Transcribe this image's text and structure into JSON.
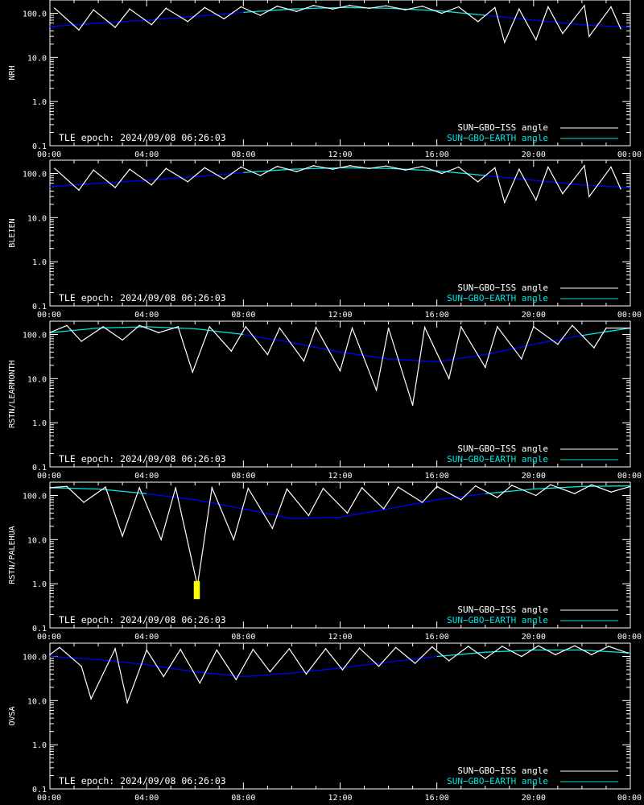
{
  "axes": {
    "y_ticks": [
      "0.1",
      "1.0",
      "10.0",
      "100.0"
    ],
    "x_ticks": [
      "00:00",
      "04:00",
      "08:00",
      "12:00",
      "16:00",
      "20:00",
      "00:00"
    ]
  },
  "legend": {
    "iss_label": "SUN−GBO−ISS angle",
    "earth_label": "SUN−GBO−EARTH angle"
  },
  "epoch_label": "TLE epoch: 2024/09/08 06:26:03",
  "colors": {
    "background": "#000000",
    "axes": "#ffffff",
    "iss": "#ffffff",
    "earth_low": "#0000ff",
    "earth_high": "#00e5e5",
    "highlight": "#ffff00"
  },
  "chart_data": [
    {
      "type": "line",
      "station": "NRH",
      "ylabel": "NRH",
      "xlim_hours": [
        0,
        24
      ],
      "ylim": [
        0.1,
        200
      ],
      "yscale": "log",
      "series": [
        {
          "name": "SUN−GBO−ISS angle",
          "x": [
            0.2,
            1.2,
            1.8,
            2.7,
            3.3,
            4.2,
            4.8,
            5.7,
            6.4,
            7.2,
            7.9,
            8.7,
            9.4,
            10.2,
            10.9,
            11.7,
            12.4,
            13.2,
            13.9,
            14.7,
            15.4,
            16.2,
            16.9,
            17.7,
            18.4,
            18.8,
            19.4,
            20.1,
            20.6,
            21.2,
            22.1,
            22.3,
            23.2,
            23.6
          ],
          "y": [
            130,
            42,
            120,
            48,
            125,
            55,
            130,
            65,
            135,
            75,
            140,
            90,
            145,
            110,
            150,
            125,
            150,
            130,
            148,
            120,
            145,
            100,
            140,
            65,
            135,
            22,
            125,
            25,
            140,
            35,
            150,
            30,
            140,
            45
          ]
        },
        {
          "name": "SUN−GBO−EARTH angle",
          "x": [
            0,
            2,
            4,
            6,
            8,
            10,
            12,
            14,
            16,
            18,
            20,
            22,
            24
          ],
          "y": [
            50,
            60,
            70,
            85,
            105,
            125,
            135,
            130,
            115,
            90,
            70,
            55,
            48
          ]
        }
      ]
    },
    {
      "type": "line",
      "station": "BLEIEN",
      "ylabel": "BLEIEN",
      "xlim_hours": [
        0,
        24
      ],
      "ylim": [
        0.1,
        200
      ],
      "yscale": "log",
      "series": [
        {
          "name": "SUN−GBO−ISS angle",
          "x": [
            0.2,
            1.2,
            1.8,
            2.7,
            3.3,
            4.2,
            4.8,
            5.7,
            6.4,
            7.2,
            7.9,
            8.7,
            9.4,
            10.2,
            10.9,
            11.7,
            12.4,
            13.2,
            13.9,
            14.7,
            15.4,
            16.2,
            16.9,
            17.7,
            18.4,
            18.8,
            19.4,
            20.1,
            20.6,
            21.2,
            22.1,
            22.3,
            23.2,
            23.6
          ],
          "y": [
            130,
            42,
            120,
            48,
            125,
            55,
            130,
            65,
            135,
            75,
            140,
            90,
            145,
            110,
            150,
            125,
            150,
            130,
            148,
            120,
            145,
            100,
            140,
            65,
            135,
            22,
            125,
            25,
            140,
            35,
            150,
            30,
            140,
            45
          ]
        },
        {
          "name": "SUN−GBO−EARTH angle",
          "x": [
            0,
            2,
            4,
            6,
            8,
            10,
            12,
            14,
            16,
            18,
            20,
            22,
            24
          ],
          "y": [
            50,
            60,
            70,
            85,
            105,
            125,
            135,
            130,
            115,
            90,
            70,
            55,
            48
          ]
        }
      ]
    },
    {
      "type": "line",
      "station": "RSTN/LEARMONTH",
      "ylabel": "RSTN/LEARMONTH",
      "xlim_hours": [
        0,
        24
      ],
      "ylim": [
        0.1,
        200
      ],
      "yscale": "log",
      "series": [
        {
          "name": "SUN−GBO−ISS angle",
          "x": [
            0,
            0.7,
            1.3,
            2.2,
            3.0,
            3.7,
            4.5,
            5.3,
            5.9,
            6.6,
            7.5,
            8.1,
            9.0,
            9.5,
            10.5,
            11.0,
            12.0,
            12.5,
            13.5,
            14.0,
            15.0,
            15.5,
            16.5,
            17.0,
            18.0,
            18.5,
            19.5,
            20.0,
            21.0,
            21.6,
            22.5,
            23.0,
            24.0
          ],
          "y": [
            110,
            160,
            70,
            150,
            75,
            160,
            110,
            150,
            14,
            150,
            42,
            150,
            35,
            140,
            25,
            145,
            15,
            140,
            5.5,
            140,
            2.5,
            145,
            10,
            150,
            18,
            150,
            28,
            150,
            60,
            160,
            50,
            140,
            140
          ]
        },
        {
          "name": "SUN−GBO−EARTH angle",
          "x": [
            0,
            2,
            4,
            6,
            8,
            10,
            12,
            14,
            16,
            18,
            20,
            22,
            24
          ],
          "y": [
            110,
            140,
            150,
            135,
            100,
            65,
            40,
            28,
            24,
            35,
            60,
            95,
            140
          ]
        }
      ]
    },
    {
      "type": "line",
      "station": "RSTN/PALEHUA",
      "ylabel": "RSTN/PALEHUA",
      "xlim_hours": [
        0,
        24
      ],
      "ylim": [
        0.1,
        200
      ],
      "yscale": "log",
      "highlight": {
        "x_start": 5.95,
        "x_end": 6.2,
        "y_low": 0.45,
        "y_high": 1.15
      },
      "series": [
        {
          "name": "SUN−GBO−ISS angle",
          "x": [
            0,
            0.7,
            1.4,
            2.3,
            3.0,
            3.7,
            4.6,
            5.2,
            6.1,
            6.7,
            7.6,
            8.2,
            9.2,
            9.8,
            10.7,
            11.3,
            12.3,
            12.9,
            13.8,
            14.4,
            15.4,
            16.0,
            17.0,
            17.6,
            18.5,
            19.1,
            20.1,
            20.7,
            21.7,
            22.4,
            23.2,
            24.0
          ],
          "y": [
            150,
            160,
            70,
            155,
            12,
            150,
            10,
            150,
            0.9,
            150,
            10,
            145,
            18,
            140,
            35,
            145,
            40,
            150,
            50,
            155,
            70,
            160,
            80,
            165,
            90,
            170,
            100,
            175,
            110,
            175,
            120,
            160
          ]
        },
        {
          "name": "SUN−GBO−EARTH angle",
          "x": [
            0,
            2,
            4,
            6,
            8,
            10,
            12,
            14,
            16,
            18,
            20,
            22,
            24
          ],
          "y": [
            150,
            140,
            110,
            80,
            50,
            30,
            32,
            50,
            80,
            110,
            140,
            160,
            165
          ]
        }
      ]
    },
    {
      "type": "line",
      "station": "OVSA",
      "ylabel": "OVSA",
      "xlim_hours": [
        0,
        24
      ],
      "ylim": [
        0.1,
        200
      ],
      "yscale": "log",
      "series": [
        {
          "name": "SUN−GBO−ISS angle",
          "x": [
            0,
            0.4,
            1.3,
            1.7,
            2.7,
            3.2,
            4.0,
            4.7,
            5.4,
            6.2,
            6.9,
            7.7,
            8.4,
            9.1,
            9.9,
            10.6,
            11.4,
            12.1,
            12.8,
            13.6,
            14.3,
            15.1,
            15.8,
            16.5,
            17.3,
            18.0,
            18.7,
            19.5,
            20.2,
            20.9,
            21.7,
            22.4,
            23.1,
            23.9
          ],
          "y": [
            110,
            160,
            60,
            11,
            150,
            9,
            140,
            35,
            145,
            25,
            140,
            30,
            145,
            45,
            150,
            40,
            150,
            50,
            155,
            60,
            160,
            70,
            165,
            80,
            170,
            90,
            170,
            100,
            175,
            110,
            175,
            110,
            170,
            120
          ]
        },
        {
          "name": "SUN−GBO−EARTH angle",
          "x": [
            0,
            2,
            4,
            6,
            8,
            10,
            12,
            14,
            16,
            18,
            20,
            22,
            24
          ],
          "y": [
            100,
            85,
            65,
            45,
            35,
            42,
            55,
            75,
            100,
            125,
            140,
            140,
            120
          ]
        }
      ]
    }
  ]
}
